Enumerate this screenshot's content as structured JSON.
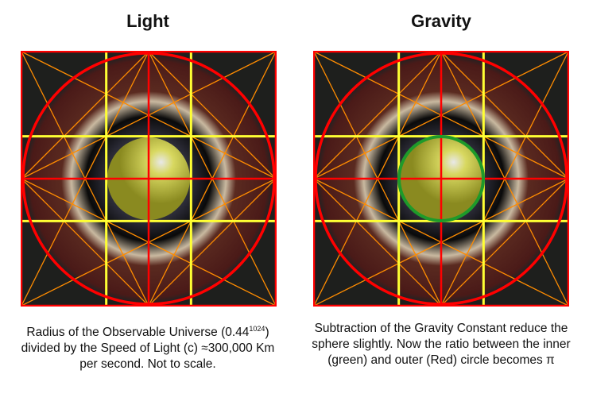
{
  "panels": [
    {
      "title": "Light",
      "caption_parts": [
        "Radius of the Observable Universe (0.44",
        "1024",
        ") divided by the Speed of Light (c) ≈300,000 Km per second. Not to scale."
      ],
      "inner_circle": false
    },
    {
      "title": "Gravity",
      "caption_parts": [
        "Subtraction of the Gravity Constant reduce the sphere slightly. Now the ratio between the inner (green) and outer (Red) circle becomes π"
      ],
      "inner_circle": true,
      "inner_circle_color": "#1e9a2a"
    }
  ],
  "colors": {
    "outer_circle": "#ff0000",
    "grid_yellow": "#ffff33",
    "lines_orange": "#ff8c00",
    "sphere": "#c8c832",
    "background": "#1e1f1d"
  }
}
